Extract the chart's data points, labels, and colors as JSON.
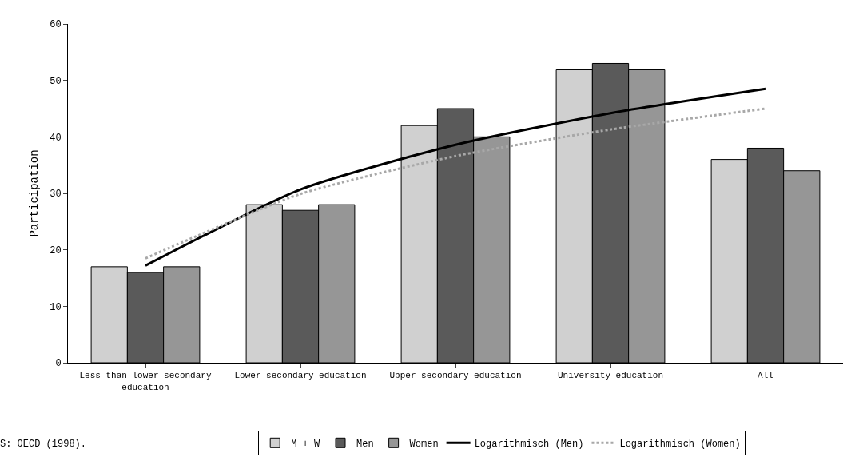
{
  "chart_data": {
    "type": "bar",
    "ylabel": "Participation",
    "categories": [
      "Less than lower secondary education",
      "Lower secondary education",
      "Upper secondary education",
      "University education",
      "All"
    ],
    "series": [
      {
        "name": "M + W",
        "color": "#d0d0d0",
        "values": [
          17,
          28,
          42,
          52,
          36
        ]
      },
      {
        "name": "Men",
        "color": "#5a5a5a",
        "values": [
          16,
          27,
          45,
          53,
          38
        ]
      },
      {
        "name": "Women",
        "color": "#969696",
        "values": [
          17,
          28,
          40,
          52,
          34
        ]
      },
      {
        "name": "Logarithmisch (Men)",
        "type": "line",
        "color": "#000000",
        "line_style": "solid",
        "x": [
          "Less than lower secondary education",
          "Lower secondary education",
          "Upper secondary education",
          "University education",
          "All"
        ],
        "values": [
          17.2,
          30.7,
          38.6,
          44.2,
          48.5
        ]
      },
      {
        "name": "Logarithmisch (Women)",
        "type": "line",
        "color": "#a8a8a8",
        "line_style": "dotted",
        "x": [
          "Less than lower secondary education",
          "Lower secondary education",
          "Upper secondary education",
          "University education",
          "All"
        ],
        "values": [
          18.5,
          29.9,
          36.6,
          41.3,
          45
        ]
      }
    ],
    "ylim": [
      0,
      60
    ],
    "yticks": [
      0,
      10,
      20,
      30,
      40,
      50,
      60
    ],
    "grid": false,
    "legend": "bottom",
    "marker": "none",
    "annotations": [
      "S: OECD (1998)."
    ]
  }
}
